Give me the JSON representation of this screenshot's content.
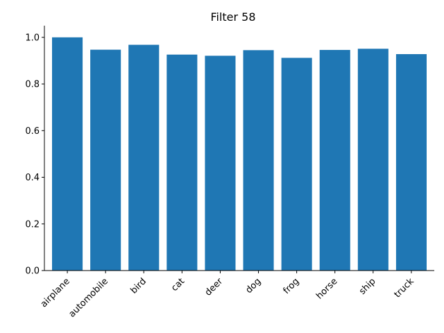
{
  "chart_data": {
    "type": "bar",
    "title": "Filter 58",
    "xlabel": "",
    "ylabel": "",
    "categories": [
      "airplane",
      "automobile",
      "bird",
      "cat",
      "deer",
      "dog",
      "frog",
      "horse",
      "ship",
      "truck"
    ],
    "values": [
      1.0,
      0.947,
      0.968,
      0.926,
      0.921,
      0.945,
      0.912,
      0.946,
      0.951,
      0.928
    ],
    "ylim": [
      0,
      1.05
    ],
    "yticks": [
      0.0,
      0.2,
      0.4,
      0.6,
      0.8,
      1.0
    ],
    "ytick_labels": [
      "0.0",
      "0.2",
      "0.4",
      "0.6",
      "0.8",
      "1.0"
    ],
    "bar_color": "#1f77b4",
    "grid": false,
    "legend": "none"
  }
}
